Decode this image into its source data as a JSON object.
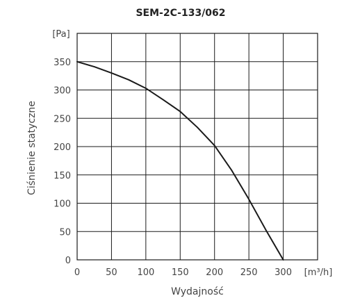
{
  "chart_data": {
    "type": "line",
    "title": "SEM-2C-133/062",
    "xlabel": "Wydajność",
    "ylabel": "Ciśnienie statyczne",
    "x_unit": "[m³/h]",
    "y_unit": "[Pa]",
    "xlim": [
      0,
      350
    ],
    "ylim": [
      0,
      400
    ],
    "x_ticks": [
      "0",
      "50",
      "100",
      "150",
      "200",
      "250",
      "300"
    ],
    "y_ticks": [
      "0",
      "50",
      "100",
      "150",
      "200",
      "250",
      "300",
      "350"
    ],
    "grid": true,
    "series": [
      {
        "x": [
          0,
          25,
          50,
          75,
          100,
          125,
          150,
          175,
          200,
          225,
          250,
          275,
          300
        ],
        "y": [
          350,
          341,
          330,
          318,
          303,
          283,
          262,
          234,
          202,
          158,
          107,
          52,
          0
        ]
      }
    ]
  }
}
